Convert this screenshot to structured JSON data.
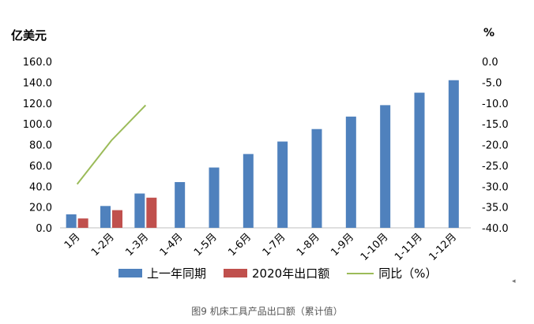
{
  "chart_data": {
    "type": "bar",
    "ylabel_left": "亿美元",
    "ylabel_right": "%",
    "categories": [
      "1月",
      "1-2月",
      "1-3月",
      "1-4月",
      "1-5月",
      "1-6月",
      "1-7月",
      "1-8月",
      "1-9月",
      "1-10月",
      "1-11月",
      "1-12月"
    ],
    "ylim_left": [
      0,
      160
    ],
    "yticks_left": [
      "160.0",
      "140.0",
      "120.0",
      "100.0",
      "80.0",
      "60.0",
      "40.0",
      "20.0",
      "0.0"
    ],
    "ylim_right": [
      -40,
      0
    ],
    "yticks_right": [
      "0.0",
      "-5.0",
      "-10.0",
      "-15.0",
      "-20.0",
      "-25.0",
      "-30.0",
      "-35.0",
      "-40.0"
    ],
    "series": [
      {
        "name": "上一年同期",
        "type": "bar",
        "axis": "left",
        "color": "#4f81bd",
        "values": [
          13,
          21,
          33,
          44,
          58,
          71,
          83,
          95,
          107,
          118,
          130,
          142
        ]
      },
      {
        "name": "2020年出口额",
        "type": "bar",
        "axis": "left",
        "color": "#c0504d",
        "values": [
          9,
          17,
          29,
          null,
          null,
          null,
          null,
          null,
          null,
          null,
          null,
          null
        ]
      },
      {
        "name": "同比（%）",
        "type": "line",
        "axis": "right",
        "color": "#9bbb59",
        "values": [
          -29.5,
          -19.0,
          -10.5,
          null,
          null,
          null,
          null,
          null,
          null,
          null,
          null,
          null
        ]
      }
    ],
    "grid": false,
    "legend_position": "bottom"
  },
  "caption": "图9    机床工具产品出口额（累计值）",
  "corner_mark": "◂"
}
